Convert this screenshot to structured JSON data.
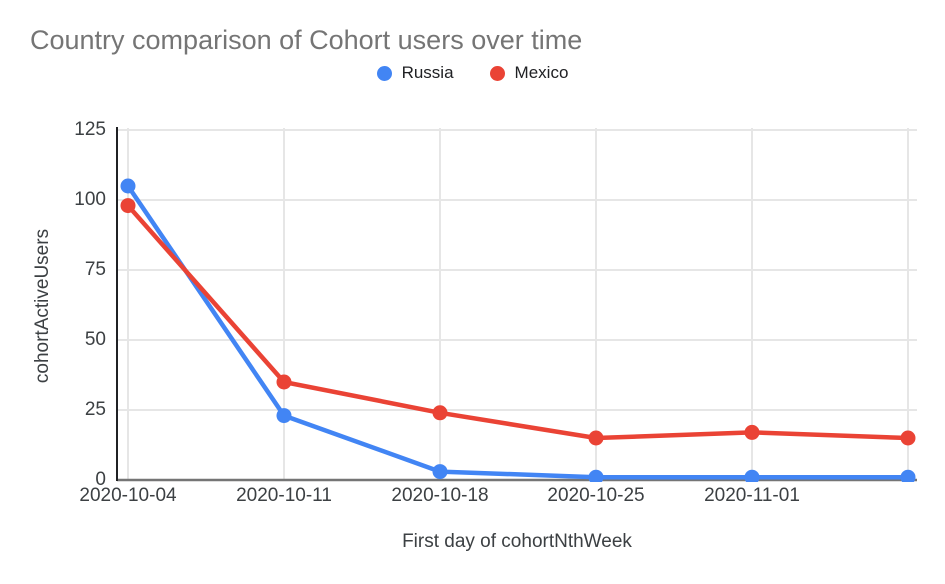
{
  "chart_data": {
    "type": "line",
    "title": "Country comparison of Cohort users over time",
    "xlabel": "First day of cohortNthWeek",
    "ylabel": "cohortActiveUsers",
    "categories": [
      "2020-10-04",
      "2020-10-11",
      "2020-10-18",
      "2020-10-25",
      "2020-11-01",
      ""
    ],
    "series": [
      {
        "name": "Russia",
        "color": "#4285F4",
        "values": [
          105,
          23,
          3,
          1,
          1,
          1
        ]
      },
      {
        "name": "Mexico",
        "color": "#EA4335",
        "values": [
          98,
          35,
          24,
          15,
          17,
          15
        ]
      }
    ],
    "ylim": [
      0,
      125
    ],
    "y_ticks": [
      0,
      25,
      50,
      75,
      100,
      125
    ],
    "grid": true,
    "legend_position": "top",
    "title_color": "#757575",
    "label_color": "#3c4043",
    "axis_color": "#202124",
    "baseline_color": "#757575",
    "gridline_color": "#e6e6e6",
    "background_color": "#ffffff"
  }
}
